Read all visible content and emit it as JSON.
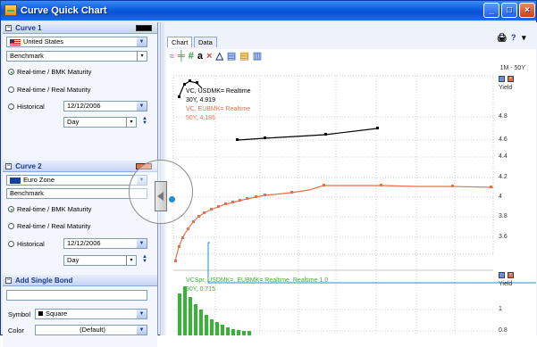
{
  "window": {
    "title": "Curve Quick Chart",
    "buttons": [
      "_",
      "□",
      "×"
    ]
  },
  "left_panel": {
    "curve1": {
      "header": "Curve 1",
      "color": "#000000",
      "country": "United States",
      "benchmark": "Benchmark",
      "radio1": "Real-time / BMK Maturity",
      "radio2": "Real-time / Real Maturity",
      "radio3": "Historical",
      "date": "12/12/2006",
      "period": "Day"
    },
    "curve2": {
      "header": "Curve 2",
      "color": "#e8704a",
      "country": "Euro Zone",
      "benchmark": "Benchmark",
      "radio1": "Real-time / BMK Maturity",
      "radio2": "Real-time / Real Maturity",
      "radio3": "Historical",
      "date": "12/12/2006",
      "period": "Day"
    },
    "bond": {
      "header": "Add Single Bond",
      "symbol_label": "Symbol",
      "symbol_value": "Square",
      "color_label": "Color",
      "color_value": "(Default)"
    }
  },
  "right_panel": {
    "tabs": [
      "Chart",
      "Data"
    ],
    "toolbar_right": [
      "🖨",
      "?",
      "▾"
    ],
    "period_label": "1M - 50Y",
    "top_chart": {
      "yield_label": "Yield",
      "series1": {
        "name": "VC, USDMK= Realtime",
        "tip": "30Y, 4.919",
        "color": "#000000"
      },
      "series2": {
        "name": "VC, EUBMK= Realtime",
        "tip": "50Y, 4.186",
        "color": "#e8704a"
      },
      "ticks": [
        "4.8",
        "4.6",
        "4.4",
        "4.2",
        "4",
        "3.8",
        "3.6"
      ]
    },
    "bottom_chart": {
      "yield_label": "Yield",
      "series_name": "VCSpr, USDMK=, EUBMK= Realtime, Realtime 1.0",
      "tip": "30Y, 0.715",
      "color": "#35b435",
      "ticks": [
        "1",
        "0.8"
      ]
    }
  }
}
